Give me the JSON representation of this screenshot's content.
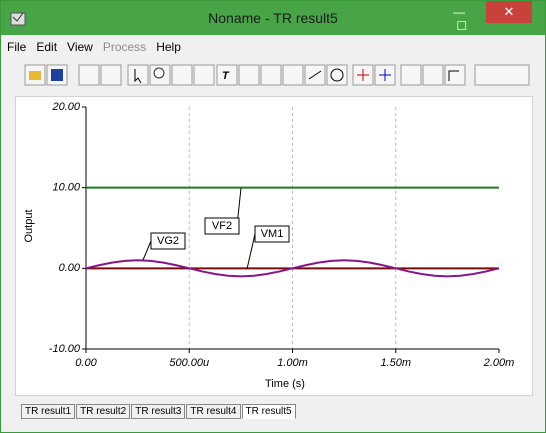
{
  "window": {
    "title": "Noname - TR result5",
    "menu": [
      "File",
      "Edit",
      "View",
      "Process",
      "Help"
    ],
    "tabs": [
      "TR result1",
      "TR result2",
      "TR result3",
      "TR result4",
      "TR result5"
    ]
  },
  "chart_data": {
    "type": "line",
    "x_label": "Time (s)",
    "y_label": "Output",
    "x": [
      0,
      6.25e-05,
      0.000125,
      0.0001875,
      0.00025,
      0.0003125,
      0.000375,
      0.0004375,
      0.0005,
      0.0005625,
      0.000625,
      0.0006875,
      0.00075,
      0.0008125,
      0.000875,
      0.0009375,
      0.001,
      0.0010625,
      0.001125,
      0.0011875,
      0.00125,
      0.0013125,
      0.001375,
      0.0014375,
      0.0015,
      0.0015625,
      0.001625,
      0.0016875,
      0.00175,
      0.0018125,
      0.001875,
      0.0019375,
      0.002
    ],
    "series": [
      {
        "name": "VF2",
        "color": "#1c7a1c",
        "values": [
          10,
          10,
          10,
          10,
          10,
          10,
          10,
          10,
          10,
          10,
          10,
          10,
          10,
          10,
          10,
          10,
          10,
          10,
          10,
          10,
          10,
          10,
          10,
          10,
          10,
          10,
          10,
          10,
          10,
          10,
          10,
          10,
          10
        ]
      },
      {
        "name": "VM1",
        "color": "#7a0a0a",
        "values": [
          0,
          0,
          0,
          0,
          0,
          0,
          0,
          0,
          0,
          0,
          0,
          0,
          0,
          0,
          0,
          0,
          0,
          0,
          0,
          0,
          0,
          0,
          0,
          0,
          0,
          0,
          0,
          0,
          0,
          0,
          0,
          0,
          0
        ]
      },
      {
        "name": "VG2",
        "color": "#85168a",
        "values": [
          0,
          0.383,
          0.707,
          0.924,
          1,
          0.924,
          0.707,
          0.383,
          0,
          -0.383,
          -0.707,
          -0.924,
          -1,
          -0.924,
          -0.707,
          -0.383,
          0,
          0.383,
          0.707,
          0.924,
          1,
          0.924,
          0.707,
          0.383,
          0,
          -0.383,
          -0.707,
          -0.924,
          -1,
          -0.924,
          -0.707,
          -0.383,
          0
        ]
      }
    ],
    "xlim": [
      0,
      0.002
    ],
    "xticks": [
      {
        "value": 0,
        "label": "0.00"
      },
      {
        "value": 0.0005,
        "label": "500.00u"
      },
      {
        "value": 0.001,
        "label": "1.00m"
      },
      {
        "value": 0.0015,
        "label": "1.50m"
      },
      {
        "value": 0.002,
        "label": "2.00m"
      }
    ],
    "ylim": [
      -10,
      20
    ],
    "yticks": [
      {
        "value": -10,
        "label": "-10.00"
      },
      {
        "value": 0,
        "label": "0.00"
      },
      {
        "value": 10,
        "label": "10.00"
      },
      {
        "value": 20,
        "label": "20.00"
      }
    ],
    "grid": true
  }
}
